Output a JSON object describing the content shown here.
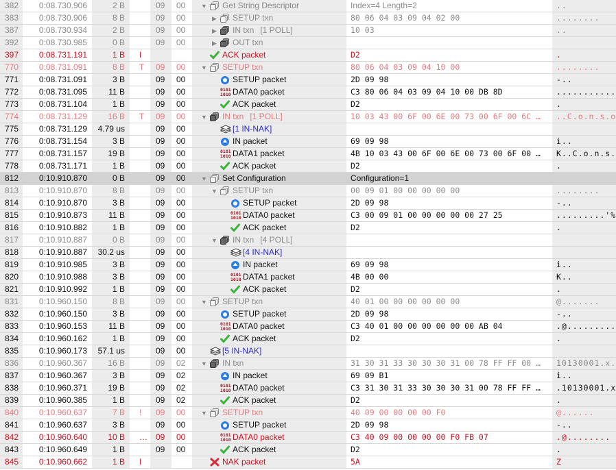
{
  "colors": {
    "error": "#d0101e",
    "warning": "#e57a80",
    "dim": "#8a8a8a",
    "selected_row": "#d3d3d3",
    "nak_link": "#2a2ad0"
  },
  "rows": [
    {
      "idx": "382",
      "time": "0:08.730.906",
      "len": "2 B",
      "flag": "",
      "dev": "09",
      "ep": "00",
      "depth": 0,
      "toggle": "open",
      "icon": "txn-outline-icon",
      "label": "Get String Descriptor",
      "label2": "",
      "data": "Index=4 Length=2",
      "data_is_text": true,
      "ascii": "..",
      "style": "dim"
    },
    {
      "idx": "383",
      "time": "0:08.730.906",
      "len": "8 B",
      "flag": "",
      "dev": "09",
      "ep": "00",
      "depth": 1,
      "toggle": "closed",
      "icon": "txn-outline-icon",
      "label": "SETUP txn",
      "label2": "",
      "data": "80 06 04 03 09 04 02 00",
      "ascii": "........",
      "style": "dim"
    },
    {
      "idx": "387",
      "time": "0:08.730.934",
      "len": "2 B",
      "flag": "",
      "dev": "09",
      "ep": "00",
      "depth": 1,
      "toggle": "closed",
      "icon": "txn-filled-icon",
      "label": "IN txn",
      "label2": "[1 POLL]",
      "data": "10 03",
      "ascii": "..",
      "style": "dim"
    },
    {
      "idx": "392",
      "time": "0:08.730.985",
      "len": "0 B",
      "flag": "",
      "dev": "09",
      "ep": "00",
      "depth": 1,
      "toggle": "closed",
      "icon": "txn-filled-icon",
      "label": "OUT txn",
      "label2": "",
      "data": "",
      "ascii": "",
      "style": "dim"
    },
    {
      "idx": "397",
      "time": "0:08.731.191",
      "len": "1 B",
      "flag": "I",
      "dev": "",
      "ep": "",
      "depth": 0,
      "toggle": "",
      "icon": "ack-check-icon",
      "label": "ACK packet",
      "label2": "",
      "data": "D2",
      "ascii": ".",
      "style": "red"
    },
    {
      "idx": "770",
      "time": "0:08.731.091",
      "len": "8 B",
      "flag": "T",
      "dev": "09",
      "ep": "00",
      "depth": 0,
      "toggle": "open",
      "icon": "txn-outline-icon",
      "label": "SETUP txn",
      "label2": "",
      "data": "80 06 04 03 09 04 10 00",
      "ascii": "........",
      "style": "pink"
    },
    {
      "idx": "771",
      "time": "0:08.731.091",
      "len": "3 B",
      "flag": "",
      "dev": "09",
      "ep": "00",
      "depth": 1,
      "toggle": "",
      "icon": "setup-packet-icon",
      "label": "SETUP packet",
      "label2": "",
      "data": "2D 09 98",
      "ascii": "-..",
      "style": ""
    },
    {
      "idx": "772",
      "time": "0:08.731.095",
      "len": "11 B",
      "flag": "",
      "dev": "09",
      "ep": "00",
      "depth": 1,
      "toggle": "",
      "icon": "data-packet-icon",
      "label": "DATA0 packet",
      "label2": "",
      "data": "C3 80 06 04 03 09 04 10 00 DB 8D",
      "ascii": "...........",
      "style": ""
    },
    {
      "idx": "773",
      "time": "0:08.731.104",
      "len": "1 B",
      "flag": "",
      "dev": "09",
      "ep": "00",
      "depth": 1,
      "toggle": "",
      "icon": "ack-check-icon",
      "label": "ACK packet",
      "label2": "",
      "data": "D2",
      "ascii": ".",
      "style": ""
    },
    {
      "idx": "774",
      "time": "0:08.731.129",
      "len": "16 B",
      "flag": "T",
      "dev": "09",
      "ep": "00",
      "depth": 0,
      "toggle": "open",
      "icon": "txn-filled-icon",
      "label": "IN txn",
      "label2": "[1 POLL]",
      "data": "10 03 43 00 6F 00 6E 00 73 00 6F 00 6C …",
      "ascii": "..C.o.n.s.o.",
      "style": "pink"
    },
    {
      "idx": "775",
      "time": "0:08.731.129",
      "len": "4.79 us",
      "flag": "",
      "dev": "09",
      "ep": "00",
      "depth": 1,
      "toggle": "",
      "icon": "in-nak-stack-icon",
      "label": "[1 IN-NAK]",
      "label2": "",
      "data": "",
      "ascii": "",
      "style": "",
      "label_blue": true
    },
    {
      "idx": "776",
      "time": "0:08.731.154",
      "len": "3 B",
      "flag": "",
      "dev": "09",
      "ep": "00",
      "depth": 1,
      "toggle": "",
      "icon": "in-packet-icon",
      "label": "IN packet",
      "label2": "",
      "data": "69 09 98",
      "ascii": "i..",
      "style": ""
    },
    {
      "idx": "777",
      "time": "0:08.731.157",
      "len": "19 B",
      "flag": "",
      "dev": "09",
      "ep": "00",
      "depth": 1,
      "toggle": "",
      "icon": "data-packet-icon",
      "label": "DATA1 packet",
      "label2": "",
      "data": "4B 10 03 43 00 6F 00 6E 00 73 00 6F 00 …",
      "ascii": "K..C.o.n.s.o",
      "style": ""
    },
    {
      "idx": "778",
      "time": "0:08.731.171",
      "len": "1 B",
      "flag": "",
      "dev": "09",
      "ep": "00",
      "depth": 1,
      "toggle": "",
      "icon": "ack-check-icon",
      "label": "ACK packet",
      "label2": "",
      "data": "D2",
      "ascii": ".",
      "style": ""
    },
    {
      "idx": "812",
      "time": "0:10.910.870",
      "len": "0 B",
      "flag": "",
      "dev": "09",
      "ep": "00",
      "depth": 0,
      "toggle": "open",
      "icon": "txn-outline-icon",
      "label": "Set Configuration",
      "label2": "",
      "data": "Configuration=1",
      "data_is_text": true,
      "ascii": "",
      "style": "sel"
    },
    {
      "idx": "813",
      "time": "0:10.910.870",
      "len": "8 B",
      "flag": "",
      "dev": "09",
      "ep": "00",
      "depth": 1,
      "toggle": "open",
      "icon": "txn-outline-icon",
      "label": "SETUP txn",
      "label2": "",
      "data": "00 09 01 00 00 00 00 00",
      "ascii": "........",
      "style": "dim"
    },
    {
      "idx": "814",
      "time": "0:10.910.870",
      "len": "3 B",
      "flag": "",
      "dev": "09",
      "ep": "00",
      "depth": 2,
      "toggle": "",
      "icon": "setup-packet-icon",
      "label": "SETUP packet",
      "label2": "",
      "data": "2D 09 98",
      "ascii": "-..",
      "style": ""
    },
    {
      "idx": "815",
      "time": "0:10.910.873",
      "len": "11 B",
      "flag": "",
      "dev": "09",
      "ep": "00",
      "depth": 2,
      "toggle": "",
      "icon": "data-packet-icon",
      "label": "DATA0 packet",
      "label2": "",
      "data": "C3 00 09 01 00 00 00 00 00 27 25",
      "ascii": ".........'%",
      "style": ""
    },
    {
      "idx": "816",
      "time": "0:10.910.882",
      "len": "1 B",
      "flag": "",
      "dev": "09",
      "ep": "00",
      "depth": 2,
      "toggle": "",
      "icon": "ack-check-icon",
      "label": "ACK packet",
      "label2": "",
      "data": "D2",
      "ascii": ".",
      "style": ""
    },
    {
      "idx": "817",
      "time": "0:10.910.887",
      "len": "0 B",
      "flag": "",
      "dev": "09",
      "ep": "00",
      "depth": 1,
      "toggle": "open",
      "icon": "txn-filled-icon",
      "label": "IN txn",
      "label2": "[4 POLL]",
      "data": "",
      "ascii": "",
      "style": "dim"
    },
    {
      "idx": "818",
      "time": "0:10.910.887",
      "len": "30.2 us",
      "flag": "",
      "dev": "09",
      "ep": "00",
      "depth": 2,
      "toggle": "",
      "icon": "in-nak-stack-icon",
      "label": "[4 IN-NAK]",
      "label2": "",
      "data": "",
      "ascii": "",
      "style": "",
      "label_blue": true
    },
    {
      "idx": "819",
      "time": "0:10.910.985",
      "len": "3 B",
      "flag": "",
      "dev": "09",
      "ep": "00",
      "depth": 2,
      "toggle": "",
      "icon": "in-packet-icon",
      "label": "IN packet",
      "label2": "",
      "data": "69 09 98",
      "ascii": "i..",
      "style": ""
    },
    {
      "idx": "820",
      "time": "0:10.910.988",
      "len": "3 B",
      "flag": "",
      "dev": "09",
      "ep": "00",
      "depth": 2,
      "toggle": "",
      "icon": "data-packet-icon",
      "label": "DATA1 packet",
      "label2": "",
      "data": "4B 00 00",
      "ascii": "K..",
      "style": ""
    },
    {
      "idx": "821",
      "time": "0:10.910.992",
      "len": "1 B",
      "flag": "",
      "dev": "09",
      "ep": "00",
      "depth": 2,
      "toggle": "",
      "icon": "ack-check-icon",
      "label": "ACK packet",
      "label2": "",
      "data": "D2",
      "ascii": ".",
      "style": ""
    },
    {
      "idx": "831",
      "time": "0:10.960.150",
      "len": "8 B",
      "flag": "",
      "dev": "09",
      "ep": "00",
      "depth": 0,
      "toggle": "open",
      "icon": "txn-outline-icon",
      "label": "SETUP txn",
      "label2": "",
      "data": "40 01 00 00 00 00 00 00",
      "ascii": "@.......",
      "style": "dim"
    },
    {
      "idx": "832",
      "time": "0:10.960.150",
      "len": "3 B",
      "flag": "",
      "dev": "09",
      "ep": "00",
      "depth": 1,
      "toggle": "",
      "icon": "setup-packet-icon",
      "label": "SETUP packet",
      "label2": "",
      "data": "2D 09 98",
      "ascii": "-..",
      "style": ""
    },
    {
      "idx": "833",
      "time": "0:10.960.153",
      "len": "11 B",
      "flag": "",
      "dev": "09",
      "ep": "00",
      "depth": 1,
      "toggle": "",
      "icon": "data-packet-icon",
      "label": "DATA0 packet",
      "label2": "",
      "data": "C3 40 01 00 00 00 00 00 00 AB 04",
      "ascii": ".@.........",
      "style": ""
    },
    {
      "idx": "834",
      "time": "0:10.960.162",
      "len": "1 B",
      "flag": "",
      "dev": "09",
      "ep": "00",
      "depth": 1,
      "toggle": "",
      "icon": "ack-check-icon",
      "label": "ACK packet",
      "label2": "",
      "data": "D2",
      "ascii": ".",
      "style": ""
    },
    {
      "idx": "835",
      "time": "0:10.960.173",
      "len": "57.1 us",
      "flag": "",
      "dev": "09",
      "ep": "00",
      "depth": 0,
      "toggle": "",
      "icon": "in-nak-stack-icon",
      "label": "[5 IN-NAK]",
      "label2": "",
      "data": "",
      "ascii": "",
      "style": "",
      "label_blue": true
    },
    {
      "idx": "836",
      "time": "0:10.960.367",
      "len": "16 B",
      "flag": "",
      "dev": "09",
      "ep": "02",
      "depth": 0,
      "toggle": "open",
      "icon": "txn-filled-icon",
      "label": "IN txn",
      "label2": "",
      "data": "31 30 31 33 30 30 30 31 00 78 FF FF 00 …",
      "ascii": "10130001.x..",
      "style": "dim"
    },
    {
      "idx": "837",
      "time": "0:10.960.367",
      "len": "3 B",
      "flag": "",
      "dev": "09",
      "ep": "02",
      "depth": 1,
      "toggle": "",
      "icon": "in-packet-icon",
      "label": "IN packet",
      "label2": "",
      "data": "69 09 B1",
      "ascii": "i..",
      "style": ""
    },
    {
      "idx": "838",
      "time": "0:10.960.371",
      "len": "19 B",
      "flag": "",
      "dev": "09",
      "ep": "02",
      "depth": 1,
      "toggle": "",
      "icon": "data-packet-icon",
      "label": "DATA0 packet",
      "label2": "",
      "data": "C3 31 30 31 33 30 30 30 31 00 78 FF FF …",
      "ascii": ".10130001.x.",
      "style": ""
    },
    {
      "idx": "839",
      "time": "0:10.960.385",
      "len": "1 B",
      "flag": "",
      "dev": "09",
      "ep": "02",
      "depth": 1,
      "toggle": "",
      "icon": "ack-check-icon",
      "label": "ACK packet",
      "label2": "",
      "data": "D2",
      "ascii": ".",
      "style": ""
    },
    {
      "idx": "840",
      "time": "0:10.960.637",
      "len": "7 B",
      "flag": "!",
      "dev": "09",
      "ep": "00",
      "depth": 0,
      "toggle": "open",
      "icon": "txn-outline-icon",
      "label": "SETUP txn",
      "label2": "",
      "data": "40 09 00 00 00 00 F0",
      "ascii": "@......",
      "style": "pink"
    },
    {
      "idx": "841",
      "time": "0:10.960.637",
      "len": "3 B",
      "flag": "",
      "dev": "09",
      "ep": "00",
      "depth": 1,
      "toggle": "",
      "icon": "setup-packet-icon",
      "label": "SETUP packet",
      "label2": "",
      "data": "2D 09 98",
      "ascii": "-..",
      "style": ""
    },
    {
      "idx": "842",
      "time": "0:10.960.640",
      "len": "10 B",
      "flag": "…",
      "dev": "09",
      "ep": "00",
      "depth": 1,
      "toggle": "",
      "icon": "data-packet-icon",
      "label": "DATA0 packet",
      "label2": "",
      "data": "C3 40 09 00 00 00 00 F0 FB 07",
      "ascii": ".@........",
      "style": "red"
    },
    {
      "idx": "843",
      "time": "0:10.960.649",
      "len": "1 B",
      "flag": "",
      "dev": "09",
      "ep": "00",
      "depth": 1,
      "toggle": "",
      "icon": "ack-check-icon",
      "label": "ACK packet",
      "label2": "",
      "data": "D2",
      "ascii": ".",
      "style": ""
    },
    {
      "idx": "845",
      "time": "0:10.960.662",
      "len": "1 B",
      "flag": "I",
      "dev": "",
      "ep": "",
      "depth": 0,
      "toggle": "",
      "icon": "nak-x-icon",
      "label": "NAK packet",
      "label2": "",
      "data": "5A",
      "ascii": "Z",
      "style": "red"
    }
  ]
}
